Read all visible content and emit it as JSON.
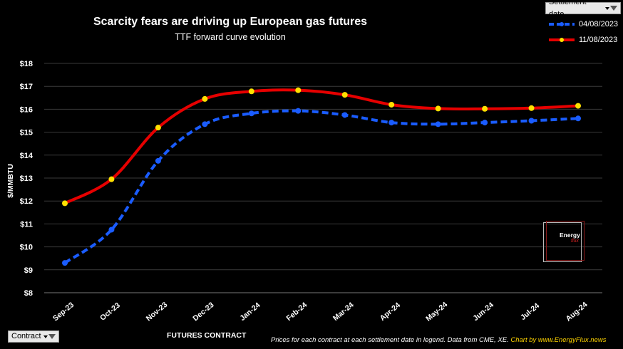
{
  "settlement_filter": {
    "label": "Settlement date"
  },
  "contract_filter": {
    "label": "Contract"
  },
  "footnote": {
    "main": "Prices for each contract at each settlement date in legend. Data from CME, XE.",
    "credit": "Chart by www.EnergyFlux.news"
  },
  "watermark": {
    "line1": "Energy",
    "line2": "flux"
  },
  "colors": {
    "series1": "#1a5cff",
    "series2": "#e60000",
    "marker2": "#ffe000",
    "grid": "#3a3a3a"
  },
  "chart_data": {
    "type": "line",
    "title": "Scarcity fears are driving up European gas futures",
    "subtitle": "TTF forward curve evolution",
    "xlabel": "FUTURES CONTRACT",
    "ylabel": "$/MMBTU",
    "ylim": [
      8,
      18
    ],
    "yticks": [
      "$8",
      "$9",
      "$10",
      "$11",
      "$12",
      "$13",
      "$14",
      "$15",
      "$16",
      "$17",
      "$18"
    ],
    "grid": true,
    "legend_position": "top-right",
    "categories": [
      "Sep-23",
      "Oct-23",
      "Nov-23",
      "Dec-23",
      "Jan-24",
      "Feb-24",
      "Mar-24",
      "Apr-24",
      "May-24",
      "Jun-24",
      "Jul-24",
      "Aug-24"
    ],
    "series": [
      {
        "name": "04/08/2023",
        "style": "dashed",
        "values": [
          9.3,
          10.75,
          13.75,
          15.35,
          15.82,
          15.93,
          15.75,
          15.42,
          15.35,
          15.42,
          15.5,
          15.6
        ]
      },
      {
        "name": "11/08/2023",
        "style": "solid",
        "values": [
          11.9,
          12.95,
          15.2,
          16.45,
          16.78,
          16.83,
          16.63,
          16.2,
          16.03,
          16.02,
          16.05,
          16.15
        ]
      }
    ]
  }
}
